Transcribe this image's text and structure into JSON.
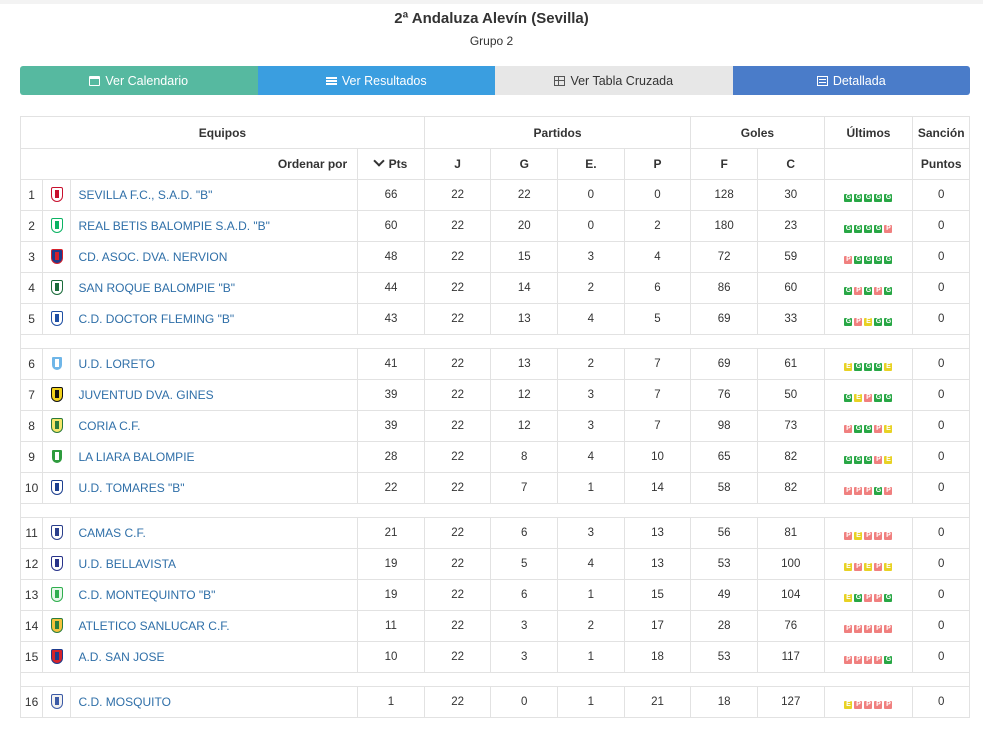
{
  "page": {
    "title": "2ª Andaluza Alevín (Sevilla)",
    "subtitle": "Grupo 2"
  },
  "buttons": {
    "calendar": "Ver Calendario",
    "results": "Ver Resultados",
    "cross_table": "Ver Tabla Cruzada",
    "detailed": "Detallada"
  },
  "table": {
    "group_headers": {
      "teams": "Equipos",
      "matches": "Partidos",
      "goals": "Goles",
      "last": "Últimos",
      "sanction": "Sanción"
    },
    "sub_headers": {
      "order_by": "Ordenar por",
      "pts": "Pts",
      "j": "J",
      "g": "G",
      "e": "E.",
      "p": "P",
      "f": "F",
      "c": "C",
      "points": "Puntos"
    },
    "colors": {
      "win": "#28a745",
      "loss": "#f0807f",
      "draw": "#e8d224",
      "link": "#2f6fa8"
    },
    "rows": [
      {
        "pos": "1",
        "team": "SEVILLA F.C., S.A.D. \"B\"",
        "pts": "66",
        "j": "22",
        "g": "22",
        "e": "0",
        "p": "0",
        "f": "128",
        "c": "30",
        "last": [
          "G",
          "G",
          "G",
          "G",
          "G"
        ],
        "sanction": "0",
        "crest": [
          "#ffffff",
          "#c8102e"
        ]
      },
      {
        "pos": "2",
        "team": "REAL BETIS BALOMPIE S.A.D. \"B\"",
        "pts": "60",
        "j": "22",
        "g": "20",
        "e": "0",
        "p": "2",
        "f": "180",
        "c": "23",
        "last": [
          "G",
          "G",
          "G",
          "G",
          "P"
        ],
        "sanction": "0",
        "crest": [
          "#ffffff",
          "#0bb363"
        ]
      },
      {
        "pos": "3",
        "team": "CD. ASOC. DVA. NERVION",
        "pts": "48",
        "j": "22",
        "g": "15",
        "e": "3",
        "p": "4",
        "f": "72",
        "c": "59",
        "last": [
          "P",
          "G",
          "G",
          "G",
          "G"
        ],
        "sanction": "0",
        "crest": [
          "#1d3a8a",
          "#d6202a"
        ]
      },
      {
        "pos": "4",
        "team": "SAN ROQUE BALOMPIE \"B\"",
        "pts": "44",
        "j": "22",
        "g": "14",
        "e": "2",
        "p": "6",
        "f": "86",
        "c": "60",
        "last": [
          "G",
          "P",
          "G",
          "P",
          "G"
        ],
        "sanction": "0",
        "crest": [
          "#ffffff",
          "#1a6b3a"
        ]
      },
      {
        "pos": "5",
        "team": "C.D. DOCTOR FLEMING \"B\"",
        "pts": "43",
        "j": "22",
        "g": "13",
        "e": "4",
        "p": "5",
        "f": "69",
        "c": "33",
        "last": [
          "G",
          "P",
          "E",
          "G",
          "G"
        ],
        "sanction": "0",
        "crest": [
          "#ffffff",
          "#1f4fa3"
        ]
      },
      {
        "sep": true
      },
      {
        "pos": "6",
        "team": "U.D. LORETO",
        "pts": "41",
        "j": "22",
        "g": "13",
        "e": "2",
        "p": "7",
        "f": "69",
        "c": "61",
        "last": [
          "E",
          "G",
          "G",
          "G",
          "E"
        ],
        "sanction": "0",
        "crest": [
          "#6fb6e8",
          "#ffffff"
        ]
      },
      {
        "pos": "7",
        "team": "JUVENTUD DVA. GINES",
        "pts": "39",
        "j": "22",
        "g": "12",
        "e": "3",
        "p": "7",
        "f": "76",
        "c": "50",
        "last": [
          "G",
          "E",
          "P",
          "G",
          "G"
        ],
        "sanction": "0",
        "crest": [
          "#f2d21b",
          "#111111"
        ]
      },
      {
        "pos": "8",
        "team": "CORIA C.F.",
        "pts": "39",
        "j": "22",
        "g": "12",
        "e": "3",
        "p": "7",
        "f": "98",
        "c": "73",
        "last": [
          "P",
          "G",
          "G",
          "P",
          "E"
        ],
        "sanction": "0",
        "crest": [
          "#f6e76a",
          "#2a7a3a"
        ]
      },
      {
        "pos": "9",
        "team": "LA LIARA BALOMPIE",
        "pts": "28",
        "j": "22",
        "g": "8",
        "e": "4",
        "p": "10",
        "f": "65",
        "c": "82",
        "last": [
          "G",
          "G",
          "G",
          "P",
          "E"
        ],
        "sanction": "0",
        "crest": [
          "#2e9b3e",
          "#ffffff"
        ]
      },
      {
        "pos": "10",
        "team": "U.D. TOMARES \"B\"",
        "pts": "22",
        "j": "22",
        "g": "7",
        "e": "1",
        "p": "14",
        "f": "58",
        "c": "82",
        "last": [
          "P",
          "P",
          "P",
          "G",
          "P"
        ],
        "sanction": "0",
        "crest": [
          "#ffffff",
          "#1c3f8f"
        ]
      },
      {
        "sep": true
      },
      {
        "pos": "11",
        "team": "CAMAS C.F.",
        "pts": "21",
        "j": "22",
        "g": "6",
        "e": "3",
        "p": "13",
        "f": "56",
        "c": "81",
        "last": [
          "P",
          "E",
          "P",
          "P",
          "P"
        ],
        "sanction": "0",
        "crest": [
          "#ffffff",
          "#2b3f8c"
        ]
      },
      {
        "pos": "12",
        "team": "U.D. BELLAVISTA",
        "pts": "19",
        "j": "22",
        "g": "5",
        "e": "4",
        "p": "13",
        "f": "53",
        "c": "100",
        "last": [
          "E",
          "P",
          "E",
          "P",
          "E"
        ],
        "sanction": "0",
        "crest": [
          "#ffffff",
          "#27328a"
        ]
      },
      {
        "pos": "13",
        "team": "C.D. MONTEQUINTO \"B\"",
        "pts": "19",
        "j": "22",
        "g": "6",
        "e": "1",
        "p": "15",
        "f": "49",
        "c": "104",
        "last": [
          "E",
          "G",
          "P",
          "P",
          "G"
        ],
        "sanction": "0",
        "crest": [
          "#e7f7ea",
          "#2fae4e"
        ]
      },
      {
        "pos": "14",
        "team": "ATLETICO SANLUCAR C.F.",
        "pts": "11",
        "j": "22",
        "g": "3",
        "e": "2",
        "p": "17",
        "f": "28",
        "c": "76",
        "last": [
          "P",
          "P",
          "P",
          "P",
          "P"
        ],
        "sanction": "0",
        "crest": [
          "#f5c33b",
          "#2a7d3c"
        ]
      },
      {
        "pos": "15",
        "team": "A.D. SAN JOSE",
        "pts": "10",
        "j": "22",
        "g": "3",
        "e": "1",
        "p": "18",
        "f": "53",
        "c": "117",
        "last": [
          "P",
          "P",
          "P",
          "P",
          "G"
        ],
        "sanction": "0",
        "crest": [
          "#d6232a",
          "#1c3b8c"
        ]
      },
      {
        "sep": true
      },
      {
        "pos": "16",
        "team": "C.D. MOSQUITO",
        "pts": "1",
        "j": "22",
        "g": "0",
        "e": "1",
        "p": "21",
        "f": "18",
        "c": "127",
        "last": [
          "E",
          "P",
          "P",
          "P",
          "P"
        ],
        "sanction": "0",
        "crest": [
          "#f1f1f1",
          "#3b5aa6"
        ]
      }
    ]
  }
}
